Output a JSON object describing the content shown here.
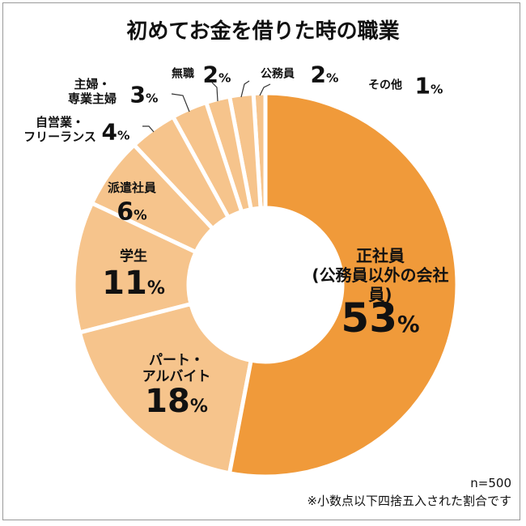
{
  "chart_data": {
    "type": "donut",
    "title": "初めてお金を借りた時の職業",
    "categories": [
      "正社員\n(公務員以外の会社員)",
      "パート・\nアルバイト",
      "学生",
      "派遣社員",
      "自営業・\nフリーランス",
      "主婦・\n専業主婦",
      "無職",
      "公務員",
      "その他"
    ],
    "values": [
      53,
      18,
      11,
      6,
      4,
      3,
      2,
      2,
      1
    ],
    "value_labels": [
      "53%",
      "18%",
      "11%",
      "6%",
      "4%",
      "3%",
      "2%",
      "2%",
      "1%"
    ],
    "colors": [
      "#f09a3a",
      "#f6c48c",
      "#f6c48c",
      "#f6c48c",
      "#f6c48c",
      "#f6c48c",
      "#f6c48c",
      "#f6c48c",
      "#f6c48c"
    ],
    "notes": [
      "n=500",
      "※小数点以下四捨五入された割合です"
    ]
  }
}
